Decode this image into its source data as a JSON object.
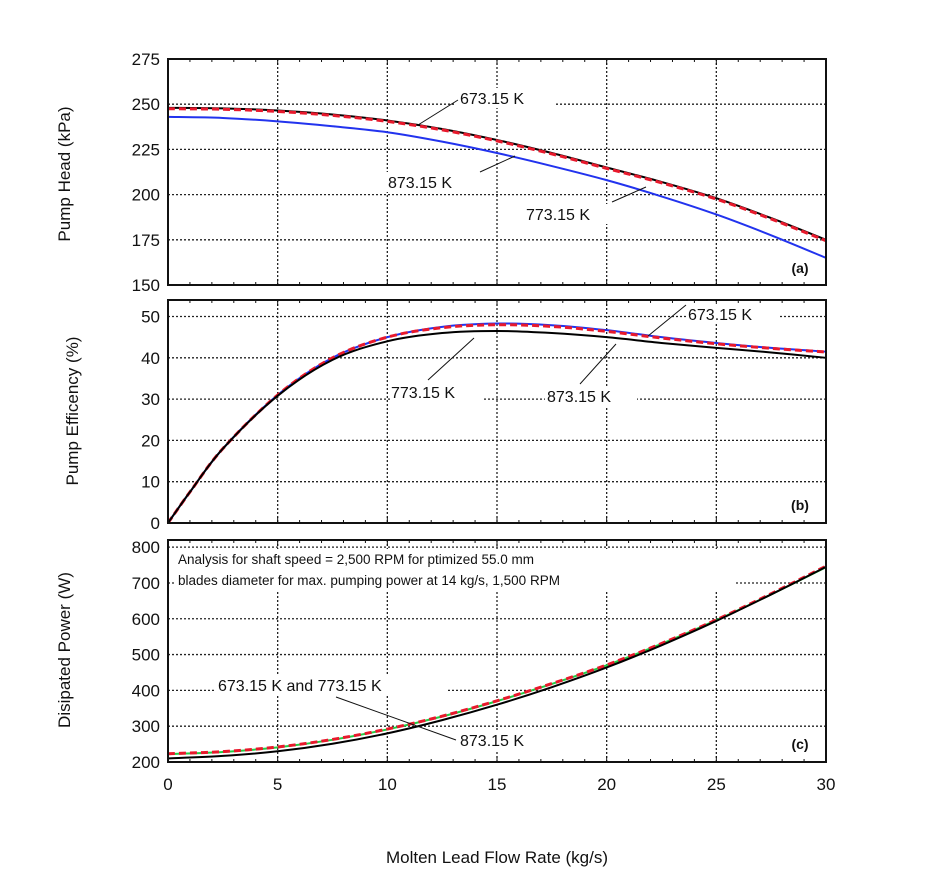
{
  "chart_data": [
    {
      "type": "line",
      "panel": "(a)",
      "ylabel": "Pump Head (kPa)",
      "xlim": [
        0,
        30
      ],
      "ylim": [
        150,
        275
      ],
      "yticks": [
        150,
        175,
        200,
        225,
        250,
        275
      ],
      "grid": true,
      "x": [
        0,
        2.5,
        5,
        7.5,
        10,
        12.5,
        15,
        17.5,
        20,
        22.5,
        25,
        27.5,
        30
      ],
      "series": [
        {
          "name": "673.15 K",
          "color": "#000000",
          "style": "solid",
          "values": [
            248,
            247.7,
            246.5,
            244.3,
            241,
            236.3,
            230.2,
            223,
            215,
            207,
            198,
            187,
            175
          ]
        },
        {
          "name": "773.15 K",
          "color": "#e8192c",
          "style": "dashed",
          "values": [
            247.5,
            247.2,
            246,
            243.8,
            240.5,
            235.8,
            229.7,
            222.5,
            214.5,
            206.5,
            197.5,
            186.5,
            174.5
          ]
        },
        {
          "name": "873.15 K",
          "color": "#2233ee",
          "style": "solid",
          "values": [
            243,
            242.4,
            240.5,
            237.8,
            234.5,
            229.3,
            223,
            215.8,
            208,
            199,
            189,
            177.5,
            165
          ]
        }
      ],
      "annotations": [
        {
          "text": "673.15 K",
          "series": "673.15 K"
        },
        {
          "text": "873.15 K",
          "series": "873.15 K"
        },
        {
          "text": "773.15 K",
          "series": "773.15 K"
        }
      ]
    },
    {
      "type": "line",
      "panel": "(b)",
      "ylabel": "Pump Efficency (%)",
      "xlim": [
        0,
        30
      ],
      "ylim": [
        0,
        54
      ],
      "yticks": [
        0,
        10,
        20,
        30,
        40,
        50
      ],
      "grid": true,
      "x": [
        0,
        1,
        2.5,
        5,
        7.5,
        10,
        12.5,
        15,
        17.5,
        20,
        22.5,
        25,
        27.5,
        30
      ],
      "series": [
        {
          "name": "673.15 K",
          "color": "#2233ee",
          "style": "solid",
          "values": [
            0,
            7.5,
            18,
            31,
            40,
            45,
            47.5,
            48.3,
            47.9,
            46.7,
            45,
            43.6,
            42.4,
            41.5
          ]
        },
        {
          "name": "773.15 K",
          "color": "#e8192c",
          "style": "dashed",
          "values": [
            0,
            7.5,
            18,
            31,
            40,
            45,
            47.3,
            48,
            47.6,
            46.4,
            44.8,
            43.4,
            42.3,
            41.4
          ]
        },
        {
          "name": "873.15 K",
          "color": "#000000",
          "style": "solid",
          "values": [
            0,
            7.5,
            18,
            30.8,
            39.5,
            44,
            46,
            46.5,
            46,
            45,
            43.6,
            42.4,
            41.3,
            40
          ]
        }
      ],
      "annotations": [
        {
          "text": "673.15 K",
          "series": "673.15 K"
        },
        {
          "text": "773.15 K",
          "series": "773.15 K"
        },
        {
          "text": "873.15 K",
          "series": "873.15 K"
        }
      ]
    },
    {
      "type": "line",
      "panel": "(c)",
      "ylabel": "Disipated Power (W)",
      "xlabel": "Molten Lead Flow Rate (kg/s)",
      "xlim": [
        0,
        30
      ],
      "ylim": [
        200,
        820
      ],
      "xticks": [
        0,
        5,
        10,
        15,
        20,
        25,
        30
      ],
      "yticks": [
        200,
        300,
        400,
        500,
        600,
        700,
        800
      ],
      "grid": true,
      "x": [
        0,
        2.5,
        5,
        7.5,
        10,
        12.5,
        15,
        17.5,
        20,
        22.5,
        25,
        27.5,
        30
      ],
      "series": [
        {
          "name": "673.15 K",
          "color": "#22cc44",
          "style": "solid",
          "values": [
            222,
            228,
            241,
            262,
            291,
            327,
            370,
            418,
            470,
            530,
            596,
            668,
            744
          ]
        },
        {
          "name": "773.15 K",
          "color": "#e8192c",
          "style": "dashed",
          "values": [
            223,
            229,
            242,
            263,
            292,
            328,
            371,
            419,
            471,
            531,
            597,
            670,
            747
          ]
        },
        {
          "name": "873.15 K",
          "color": "#000000",
          "style": "solid",
          "values": [
            210,
            217,
            230,
            251,
            280,
            317,
            360,
            409,
            464,
            526,
            594,
            668,
            745
          ]
        }
      ],
      "annotations": [
        {
          "text": "673.15 K and 773.15 K"
        },
        {
          "text": "873.15 K"
        }
      ],
      "note_lines": [
        "Analysis for shaft speed = 2,500 RPM for ptimized 55.0 mm",
        "blades diameter for max. pumping power at 14 kg/s, 1,500 RPM"
      ]
    }
  ]
}
